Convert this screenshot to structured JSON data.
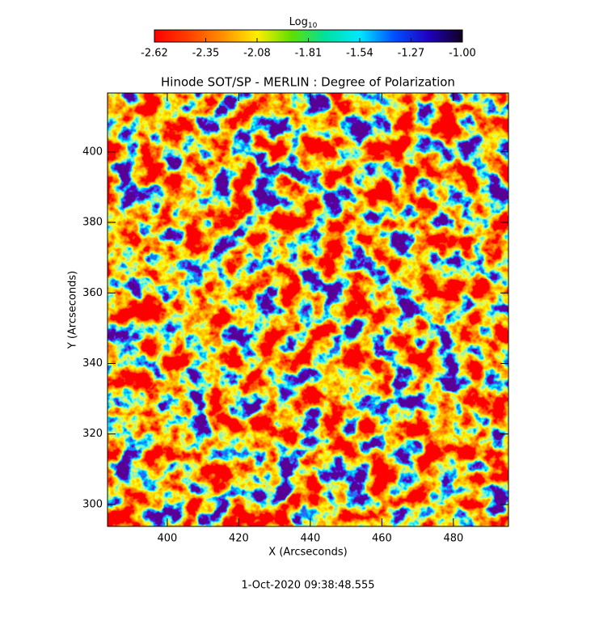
{
  "chart_data": {
    "type": "heatmap",
    "title": "Hinode SOT/SP - MERLIN : Degree of Polarization",
    "xlabel": "X (Arcseconds)",
    "ylabel": "Y (Arcseconds)",
    "footer": "1-Oct-2020 09:38:48.555",
    "colorbar_label": {
      "base": "Log",
      "sub": "10"
    },
    "colorbar_lim": [
      -2.62,
      -1.0
    ],
    "colorbar_ticks": [
      -2.62,
      -2.35,
      -2.08,
      -1.81,
      -1.54,
      -1.27,
      {
        "value": -1.0,
        "label": "-1.00"
      }
    ],
    "colorscale": [
      "#ff0000",
      "#ff4000",
      "#ff9000",
      "#ffee00",
      "#60e000",
      "#00e0a0",
      "#00e8ff",
      "#0050ff",
      "#2000c0",
      "#100020"
    ],
    "xlim": [
      383.3,
      495.4
    ],
    "ylim": [
      293.8,
      416.7
    ],
    "xticks": [
      400,
      420,
      440,
      460,
      480
    ],
    "yticks": [
      300,
      320,
      340,
      360,
      380,
      400
    ]
  }
}
